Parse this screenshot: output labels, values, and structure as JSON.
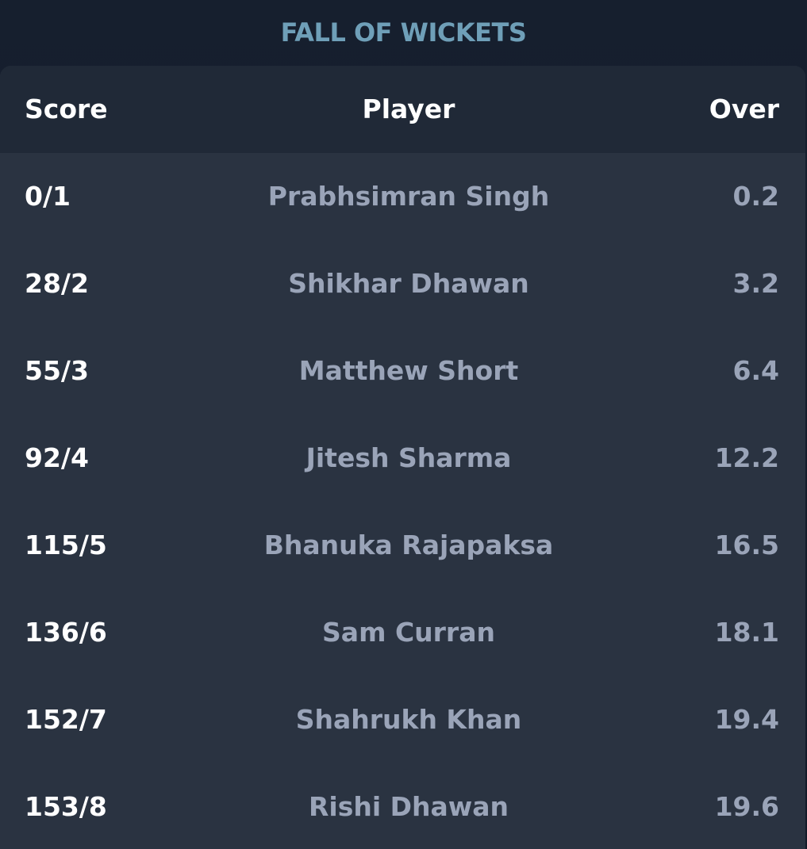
{
  "title": "FALL OF WICKETS",
  "headers": {
    "score": "Score",
    "player": "Player",
    "over": "Over"
  },
  "wickets": [
    {
      "score": "0/1",
      "player": "Prabhsimran Singh",
      "over": "0.2"
    },
    {
      "score": "28/2",
      "player": "Shikhar Dhawan",
      "over": "3.2"
    },
    {
      "score": "55/3",
      "player": "Matthew Short",
      "over": "6.4"
    },
    {
      "score": "92/4",
      "player": "Jitesh Sharma",
      "over": "12.2"
    },
    {
      "score": "115/5",
      "player": "Bhanuka Rajapaksa",
      "over": "16.5"
    },
    {
      "score": "136/6",
      "player": "Sam Curran",
      "over": "18.1"
    },
    {
      "score": "152/7",
      "player": "Shahrukh Khan",
      "over": "19.4"
    },
    {
      "score": "153/8",
      "player": "Rishi Dhawan",
      "over": "19.6"
    }
  ],
  "colors": {
    "title": "#6f9fb8",
    "background": "#141c2a",
    "card": "#2a3341",
    "header": "#202937",
    "score_text": "#ffffff",
    "muted_text": "#9aa4b8"
  }
}
